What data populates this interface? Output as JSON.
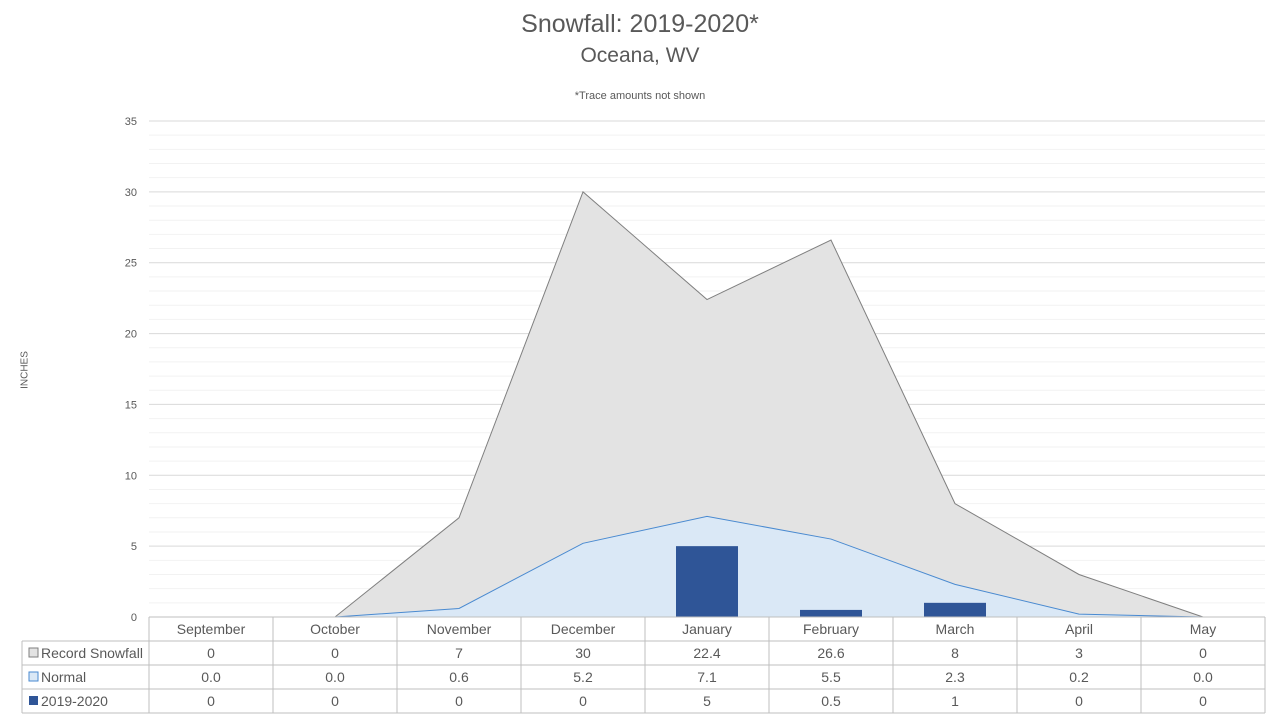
{
  "chart_data": {
    "type": "area",
    "title": "Snowfall: 2019-2020*",
    "subtitle": "Oceana, WV",
    "note": "*Trace amounts not shown",
    "ylabel": "INCHES",
    "ylim": [
      0,
      35
    ],
    "yticks": [
      "0",
      "5",
      "10",
      "15",
      "20",
      "25",
      "30",
      "35"
    ],
    "categories": [
      "September",
      "October",
      "November",
      "December",
      "January",
      "February",
      "March",
      "April",
      "May"
    ],
    "series": [
      {
        "name": "Record Snowfall",
        "kind": "area",
        "color": "#e3e3e3",
        "stroke": "#7f7f7f",
        "values": [
          0,
          0,
          7,
          30,
          22.4,
          26.6,
          8,
          3,
          0
        ],
        "labels": [
          "0",
          "0",
          "7",
          "30",
          "22.4",
          "26.6",
          "8",
          "3",
          "0"
        ]
      },
      {
        "name": "Normal",
        "kind": "area",
        "color": "#dae8f6",
        "stroke": "#4a8ad0",
        "values": [
          0.0,
          0.0,
          0.6,
          5.2,
          7.1,
          5.5,
          2.3,
          0.2,
          0.0
        ],
        "labels": [
          "0.0",
          "0.0",
          "0.6",
          "5.2",
          "7.1",
          "5.5",
          "2.3",
          "0.2",
          "0.0"
        ]
      },
      {
        "name": "2019-2020",
        "kind": "bar",
        "color": "#2f5597",
        "stroke": "#2f5597",
        "values": [
          0,
          0,
          0,
          0,
          5,
          0.5,
          1,
          0,
          0
        ],
        "labels": [
          "0",
          "0",
          "0",
          "0",
          "5",
          "0.5",
          "1",
          "0",
          "0"
        ]
      }
    ],
    "grid": true,
    "legend": "data-table"
  }
}
